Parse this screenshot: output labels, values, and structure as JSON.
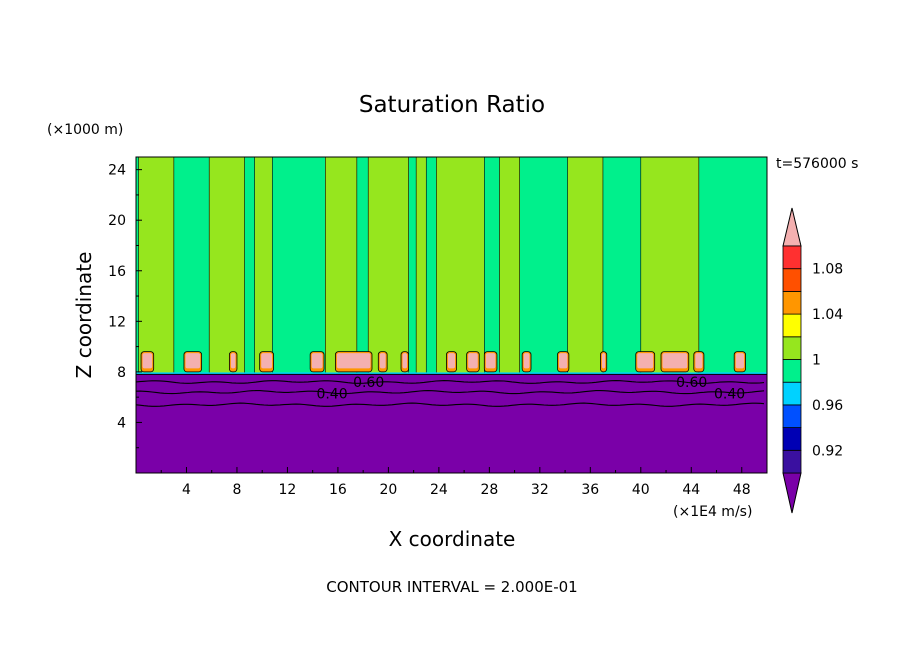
{
  "chart_data": {
    "type": "heatmap",
    "title": "Saturation Ratio",
    "xlabel": "X coordinate",
    "ylabel": "Z coordinate",
    "x_unit": "(×1E4 m/s)",
    "y_unit": "(×1000 m)",
    "time_label": "t=576000 s",
    "footer": "CONTOUR INTERVAL = 2.000E-01",
    "xlim": [
      0,
      50
    ],
    "ylim": [
      0,
      25
    ],
    "x_ticks": [
      "4",
      "8",
      "12",
      "16",
      "20",
      "24",
      "28",
      "32",
      "36",
      "40",
      "44",
      "48"
    ],
    "y_ticks": [
      "4",
      "8",
      "12",
      "16",
      "20",
      "24"
    ],
    "colorbar": {
      "levels": [
        {
          "from": 0.9,
          "to": 0.92,
          "color": "#3a10a0"
        },
        {
          "from": 0.92,
          "to": 0.94,
          "color": "#0000b4"
        },
        {
          "from": 0.94,
          "to": 0.96,
          "color": "#0050ff"
        },
        {
          "from": 0.96,
          "to": 0.98,
          "color": "#00d2ff"
        },
        {
          "from": 0.98,
          "to": 1.0,
          "color": "#00f08c"
        },
        {
          "from": 1.0,
          "to": 1.02,
          "color": "#96e61e"
        },
        {
          "from": 1.02,
          "to": 1.04,
          "color": "#ffff00"
        },
        {
          "from": 1.04,
          "to": 1.06,
          "color": "#ff9600"
        },
        {
          "from": 1.06,
          "to": 1.08,
          "color": "#ff5000"
        },
        {
          "from": 1.08,
          "to": 1.1,
          "color": "#ff3030"
        }
      ],
      "under_color": "#7a00a8",
      "over_color": "#f4b0b0",
      "labels": [
        "0.92",
        "0.96",
        "1",
        "1.04",
        "1.08"
      ]
    },
    "contour_labels": [
      "0.60",
      "0.40",
      "0.60",
      "0.40"
    ],
    "regions": {
      "lower_layer": {
        "z_top": 7.8,
        "color": "#7a00a8"
      },
      "upper_background": {
        "color": "#00f08c"
      },
      "moist_columns": [
        {
          "x0": 0.2,
          "x1": 3.0
        },
        {
          "x0": 5.8,
          "x1": 8.6
        },
        {
          "x0": 9.4,
          "x1": 10.8
        },
        {
          "x0": 15.0,
          "x1": 17.5
        },
        {
          "x0": 18.4,
          "x1": 21.6
        },
        {
          "x0": 22.2,
          "x1": 23.0
        },
        {
          "x0": 23.8,
          "x1": 27.6
        },
        {
          "x0": 28.8,
          "x1": 30.4
        },
        {
          "x0": 34.2,
          "x1": 37.0
        },
        {
          "x0": 40.0,
          "x1": 44.6
        }
      ],
      "caps": [
        {
          "x0": 0.4,
          "x1": 1.4
        },
        {
          "x0": 3.8,
          "x1": 5.2
        },
        {
          "x0": 7.4,
          "x1": 8.0
        },
        {
          "x0": 9.8,
          "x1": 10.9
        },
        {
          "x0": 13.8,
          "x1": 14.9
        },
        {
          "x0": 15.8,
          "x1": 18.7
        },
        {
          "x0": 19.2,
          "x1": 19.9
        },
        {
          "x0": 21.0,
          "x1": 21.6
        },
        {
          "x0": 24.6,
          "x1": 25.4
        },
        {
          "x0": 26.2,
          "x1": 27.2
        },
        {
          "x0": 27.6,
          "x1": 28.6
        },
        {
          "x0": 30.6,
          "x1": 31.3
        },
        {
          "x0": 33.4,
          "x1": 34.3
        },
        {
          "x0": 36.8,
          "x1": 37.3
        },
        {
          "x0": 39.6,
          "x1": 41.1
        },
        {
          "x0": 41.6,
          "x1": 43.8
        },
        {
          "x0": 44.2,
          "x1": 45.0
        },
        {
          "x0": 47.4,
          "x1": 48.3
        }
      ],
      "cap_z": [
        8.0,
        9.6
      ],
      "isolines_z": [
        7.2,
        6.4,
        5.4
      ]
    }
  }
}
